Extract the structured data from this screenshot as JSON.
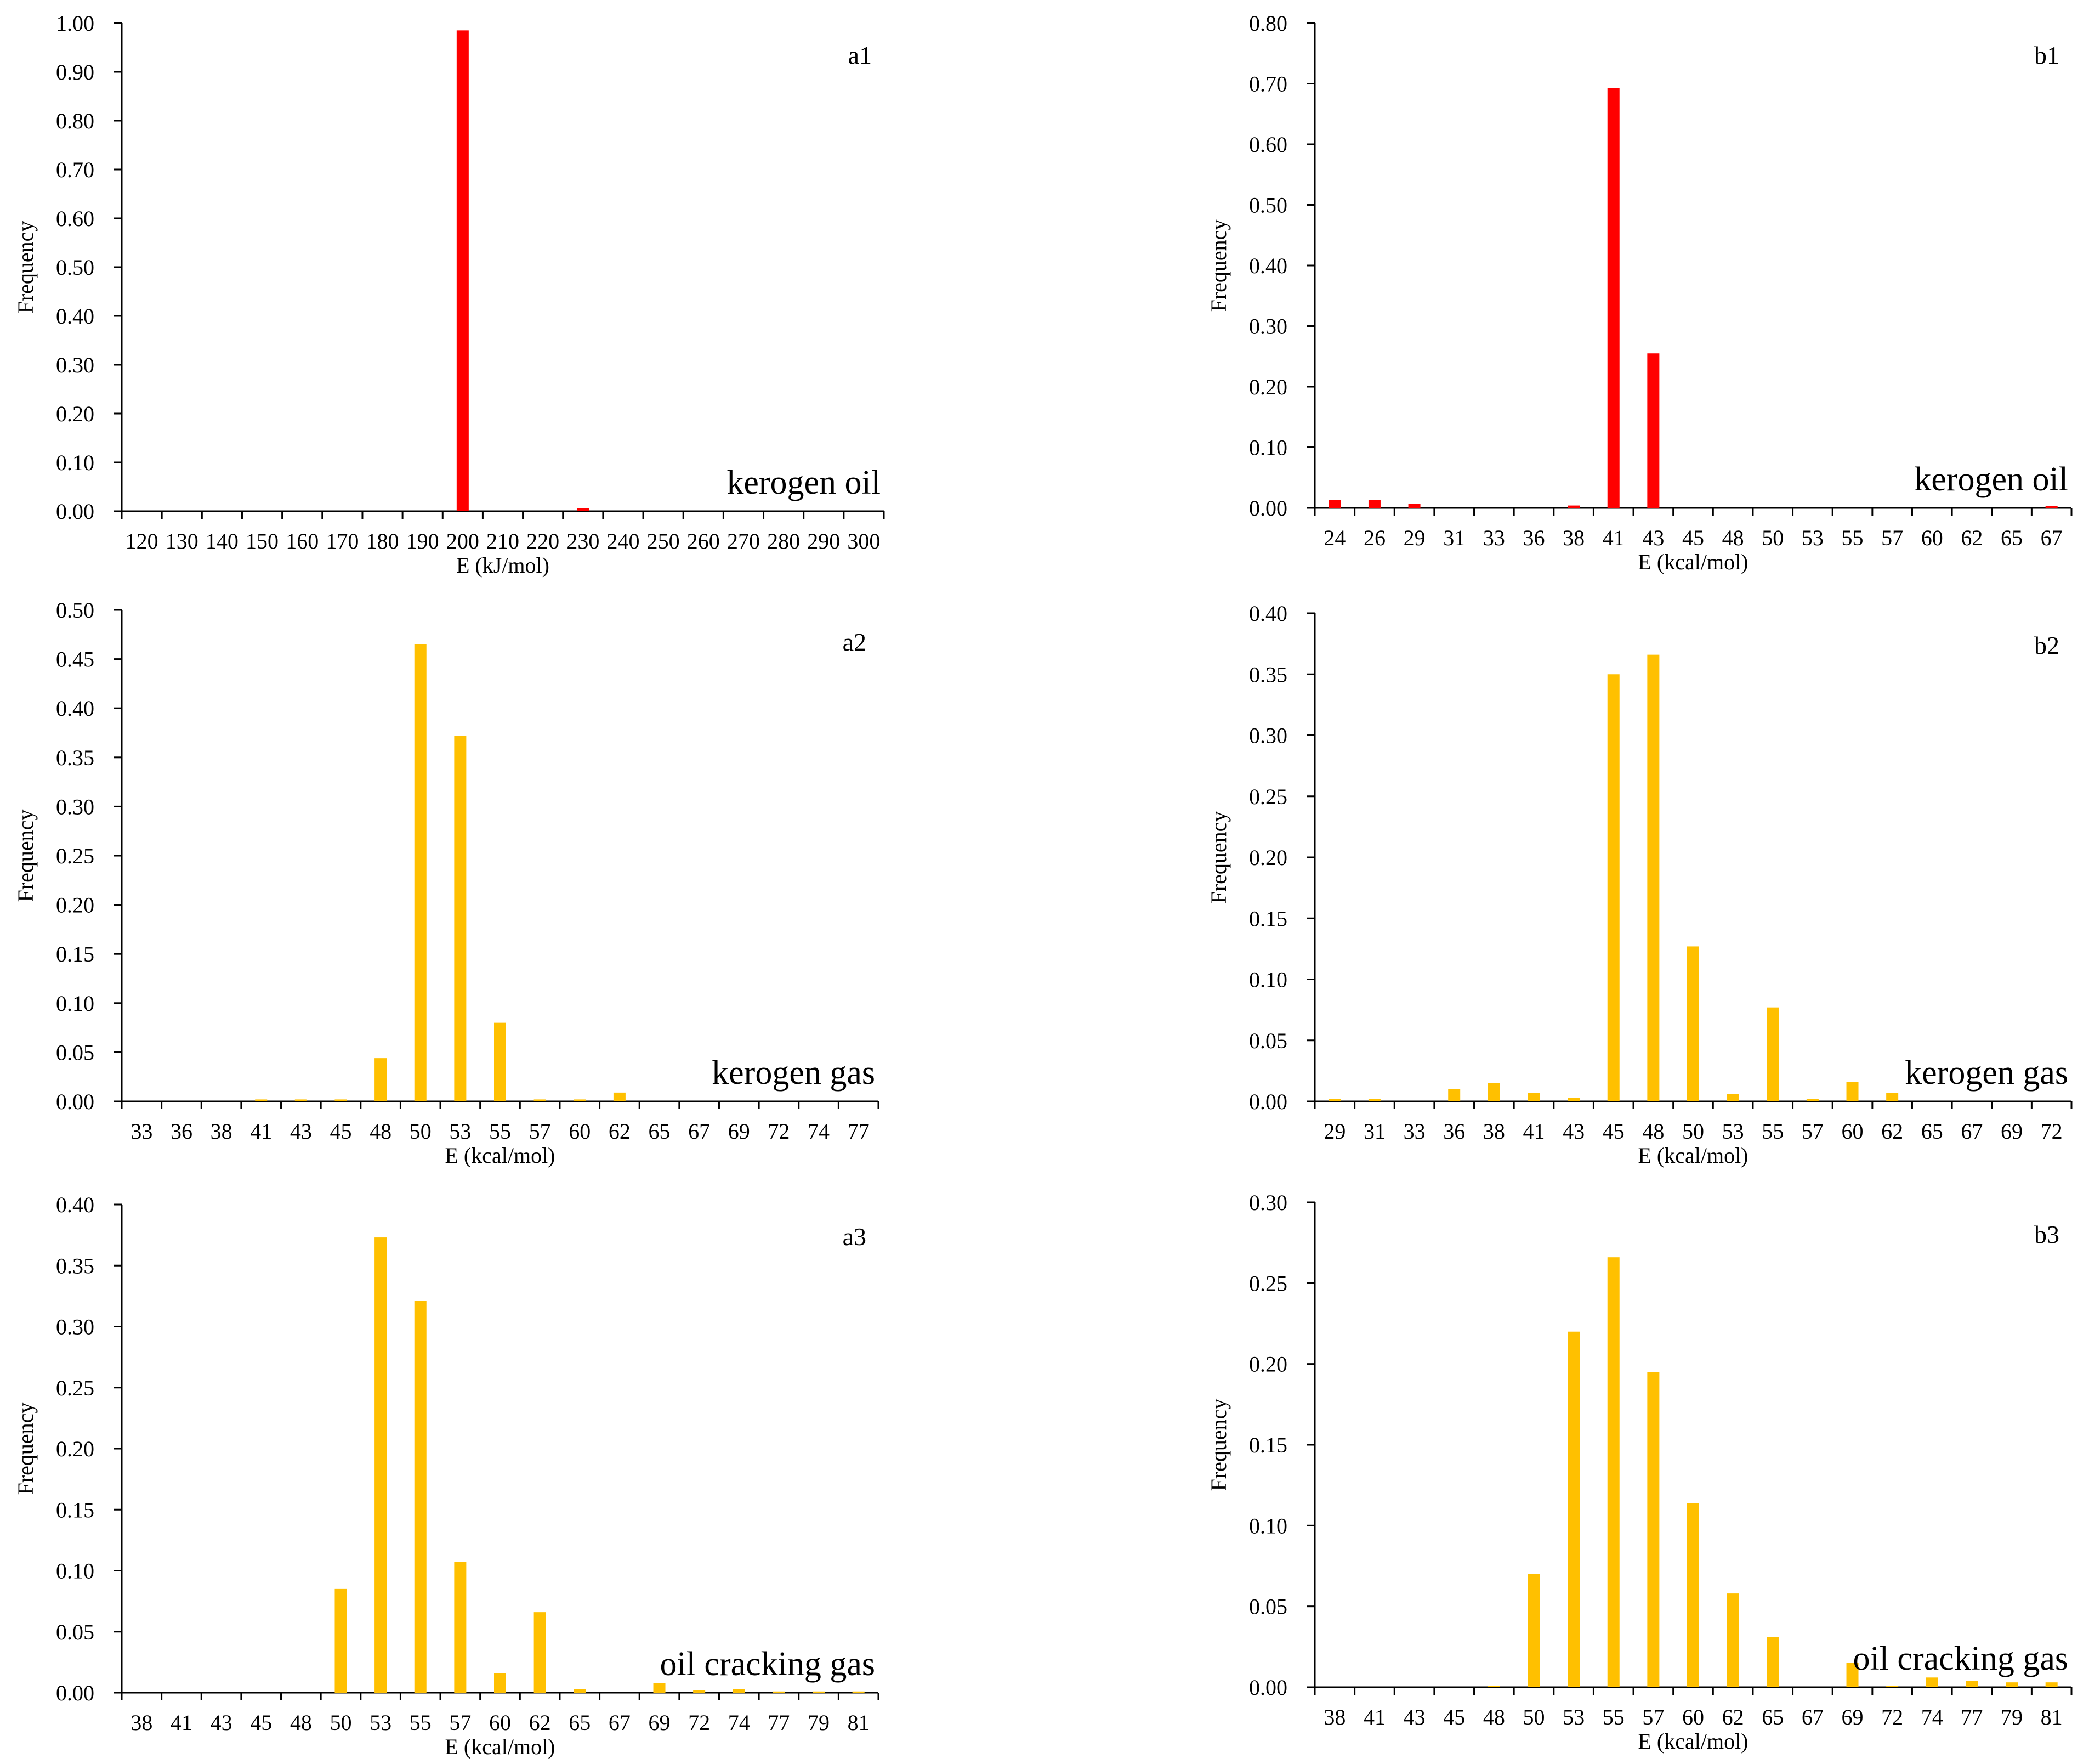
{
  "figure": {
    "colors": {
      "red": "#ff0000",
      "yellow": "#ffc000",
      "axis": "#000000"
    }
  },
  "chart_data": [
    {
      "id": "a1",
      "type": "bar",
      "panel_label": "a1",
      "series_label": "kerogen oil",
      "color": "#ff0000",
      "xlabel": "E (kJ/mol)",
      "ylabel": "Frequency",
      "ylim": [
        0,
        1.0
      ],
      "yticks": [
        "0.00",
        "0.10",
        "0.20",
        "0.30",
        "0.40",
        "0.50",
        "0.60",
        "0.70",
        "0.80",
        "0.90",
        "1.00"
      ],
      "categories": [
        "120",
        "130",
        "140",
        "150",
        "160",
        "170",
        "180",
        "190",
        "200",
        "210",
        "220",
        "230",
        "240",
        "250",
        "260",
        "270",
        "280",
        "290",
        "300"
      ],
      "values": [
        0,
        0,
        0,
        0,
        0,
        0,
        0,
        0,
        0.985,
        0,
        0,
        0.006,
        0,
        0,
        0,
        0,
        0,
        0,
        0
      ]
    },
    {
      "id": "b1",
      "type": "bar",
      "panel_label": "b1",
      "series_label": "kerogen oil",
      "color": "#ff0000",
      "xlabel": "E (kcal/mol)",
      "ylabel": "Frequency",
      "ylim": [
        0,
        0.8
      ],
      "yticks": [
        "0.00",
        "0.10",
        "0.20",
        "0.30",
        "0.40",
        "0.50",
        "0.60",
        "0.70",
        "0.80"
      ],
      "categories": [
        "24",
        "26",
        "29",
        "31",
        "33",
        "36",
        "38",
        "41",
        "43",
        "45",
        "48",
        "50",
        "53",
        "55",
        "57",
        "60",
        "62",
        "65",
        "67"
      ],
      "values": [
        0.013,
        0.013,
        0.007,
        0,
        0,
        0,
        0.004,
        0.693,
        0.255,
        0,
        0,
        0,
        0,
        0,
        0,
        0,
        0,
        0,
        0.003
      ]
    },
    {
      "id": "a2",
      "type": "bar",
      "panel_label": "a2",
      "series_label": "kerogen gas",
      "color": "#ffc000",
      "xlabel": "E (kcal/mol)",
      "ylabel": "Frequency",
      "ylim": [
        0,
        0.5
      ],
      "yticks": [
        "0.00",
        "0.05",
        "0.10",
        "0.15",
        "0.20",
        "0.25",
        "0.30",
        "0.35",
        "0.40",
        "0.45",
        "0.50"
      ],
      "categories": [
        "33",
        "36",
        "38",
        "41",
        "43",
        "45",
        "48",
        "50",
        "53",
        "55",
        "57",
        "60",
        "62",
        "65",
        "67",
        "69",
        "72",
        "74",
        "77"
      ],
      "values": [
        0,
        0,
        0,
        0.002,
        0.002,
        0.002,
        0.044,
        0.465,
        0.372,
        0.08,
        0.002,
        0.002,
        0.009,
        0,
        0,
        0,
        0,
        0,
        0
      ]
    },
    {
      "id": "b2",
      "type": "bar",
      "panel_label": "b2",
      "series_label": "kerogen gas",
      "color": "#ffc000",
      "xlabel": "E (kcal/mol)",
      "ylabel": "Frequency",
      "ylim": [
        0,
        0.4
      ],
      "yticks": [
        "0.00",
        "0.05",
        "0.10",
        "0.15",
        "0.20",
        "0.25",
        "0.30",
        "0.35",
        "0.40"
      ],
      "categories": [
        "29",
        "31",
        "33",
        "36",
        "38",
        "41",
        "43",
        "45",
        "48",
        "50",
        "53",
        "55",
        "57",
        "60",
        "62",
        "65",
        "67",
        "69",
        "72"
      ],
      "values": [
        0.002,
        0.002,
        0,
        0.01,
        0.015,
        0.007,
        0.003,
        0.35,
        0.366,
        0.127,
        0.006,
        0.077,
        0.002,
        0.016,
        0.007,
        0,
        0,
        0,
        0
      ]
    },
    {
      "id": "a3",
      "type": "bar",
      "panel_label": "a3",
      "series_label": "oil cracking gas",
      "color": "#ffc000",
      "xlabel": "E (kcal/mol)",
      "ylabel": "Frequency",
      "ylim": [
        0,
        0.4
      ],
      "yticks": [
        "0.00",
        "0.05",
        "0.10",
        "0.15",
        "0.20",
        "0.25",
        "0.30",
        "0.35",
        "0.40"
      ],
      "categories": [
        "38",
        "41",
        "43",
        "45",
        "48",
        "50",
        "53",
        "55",
        "57",
        "60",
        "62",
        "65",
        "67",
        "69",
        "72",
        "74",
        "77",
        "79",
        "81"
      ],
      "values": [
        0,
        0,
        0,
        0,
        0,
        0.085,
        0.373,
        0.321,
        0.107,
        0.016,
        0.066,
        0.003,
        0,
        0.008,
        0.002,
        0.003,
        0.001,
        0.001,
        0.001
      ]
    },
    {
      "id": "b3",
      "type": "bar",
      "panel_label": "b3",
      "series_label": "oil cracking gas",
      "color": "#ffc000",
      "xlabel": "E (kcal/mol)",
      "ylabel": "Frequency",
      "ylim": [
        0,
        0.3
      ],
      "yticks": [
        "0.00",
        "0.05",
        "0.10",
        "0.15",
        "0.20",
        "0.25",
        "0.30"
      ],
      "categories": [
        "38",
        "41",
        "43",
        "45",
        "48",
        "50",
        "53",
        "55",
        "57",
        "60",
        "62",
        "65",
        "67",
        "69",
        "72",
        "74",
        "77",
        "79",
        "81"
      ],
      "values": [
        0,
        0,
        0,
        0,
        0.001,
        0.07,
        0.22,
        0.266,
        0.195,
        0.114,
        0.058,
        0.031,
        0,
        0.015,
        0.001,
        0.006,
        0.004,
        0.003,
        0.003
      ]
    }
  ]
}
